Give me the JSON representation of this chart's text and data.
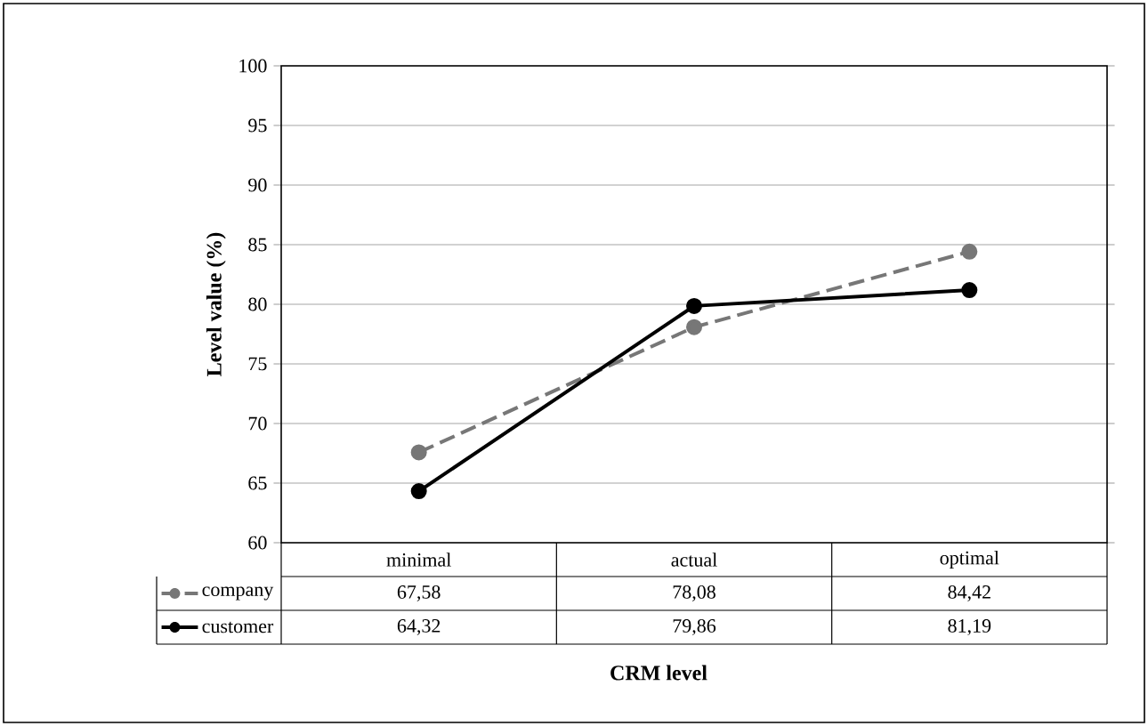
{
  "chart_data": {
    "type": "line",
    "xlabel": "CRM level",
    "ylabel": "Level value (%)",
    "categories": [
      "minimal",
      "actual",
      "optimal"
    ],
    "ylim": [
      60,
      100
    ],
    "yticks": [
      60,
      65,
      70,
      75,
      80,
      85,
      90,
      95,
      100
    ],
    "grid": "y",
    "legend": "bottom left",
    "marker": "circle",
    "series": [
      {
        "name": "company",
        "color": "#777777",
        "line_style": "dashed",
        "values": [
          67.58,
          78.08,
          84.42
        ],
        "value_labels": [
          "67,58",
          "78,08",
          "84,42"
        ]
      },
      {
        "name": "customer",
        "color": "#000000",
        "line_style": "solid",
        "values": [
          64.32,
          79.86,
          81.19
        ],
        "value_labels": [
          "64,32",
          "79,86",
          "81,19"
        ]
      }
    ]
  }
}
